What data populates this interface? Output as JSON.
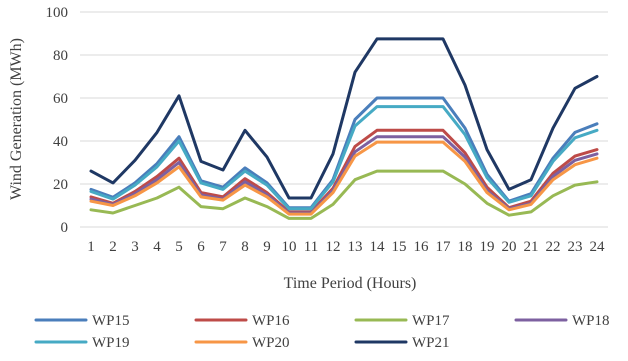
{
  "chart_data": {
    "type": "line",
    "xlabel": "Time Period (Hours)",
    "ylabel": "Wind Generation (MWh)",
    "ylim": [
      0,
      100
    ],
    "yticks": [
      0,
      20,
      40,
      60,
      80,
      100
    ],
    "grid": "horizontal",
    "legend_position": "bottom",
    "categories": [
      "1",
      "2",
      "3",
      "4",
      "5",
      "6",
      "7",
      "8",
      "9",
      "10",
      "11",
      "12",
      "13",
      "14",
      "15",
      "16",
      "17",
      "18",
      "19",
      "20",
      "21",
      "22",
      "23",
      "24"
    ],
    "series": [
      {
        "name": "WP15",
        "color": "#4a7ebb",
        "values": [
          17.5,
          13.8,
          20.5,
          29.5,
          42,
          21.5,
          18.5,
          27.5,
          20.5,
          9,
          9,
          22,
          50,
          60,
          60,
          60,
          60,
          46,
          24.5,
          12,
          15.5,
          32,
          44,
          48
        ]
      },
      {
        "name": "WP16",
        "color": "#be4b48",
        "values": [
          14,
          11,
          16.5,
          23.5,
          32,
          16,
          14,
          22.5,
          16,
          7,
          7,
          18,
          37.5,
          45,
          45,
          45,
          45,
          34.5,
          18.5,
          9,
          12,
          25,
          33,
          36
        ]
      },
      {
        "name": "WP17",
        "color": "#98b954",
        "values": [
          8,
          6.5,
          10,
          13.5,
          18.5,
          9.5,
          8.5,
          13.5,
          9.5,
          4,
          4,
          10.5,
          22,
          26,
          26,
          26,
          26,
          20,
          11,
          5.5,
          7,
          14.5,
          19.5,
          21
        ]
      },
      {
        "name": "WP18",
        "color": "#7d60a0",
        "values": [
          13,
          10.5,
          15.5,
          22,
          30,
          15,
          13,
          21,
          15,
          6.5,
          6.5,
          17,
          35,
          42,
          42,
          42,
          42,
          32.5,
          17,
          8.5,
          11,
          23.5,
          31,
          34
        ]
      },
      {
        "name": "WP19",
        "color": "#46aac4",
        "values": [
          16.5,
          13,
          19.5,
          28,
          40,
          20.5,
          17.5,
          26,
          19.5,
          8.5,
          8.5,
          21,
          47,
          56,
          56,
          56,
          56,
          43,
          23,
          11.5,
          14.5,
          30.5,
          41.5,
          45
        ]
      },
      {
        "name": "WP20",
        "color": "#f79646",
        "values": [
          12,
          10,
          14.5,
          20.5,
          28,
          14,
          12.5,
          19.5,
          14,
          6,
          6,
          16,
          33,
          39.5,
          39.5,
          39.5,
          39.5,
          30.5,
          16,
          8,
          10.5,
          22,
          29,
          32
        ]
      },
      {
        "name": "WP21",
        "color": "#1f3864",
        "values": [
          26,
          20.5,
          31,
          44,
          61,
          30.5,
          26.5,
          45,
          32.5,
          13.5,
          13.5,
          34,
          72,
          87.5,
          87.5,
          87.5,
          87.5,
          66,
          36,
          17.5,
          22,
          46,
          64.5,
          70
        ]
      }
    ]
  }
}
